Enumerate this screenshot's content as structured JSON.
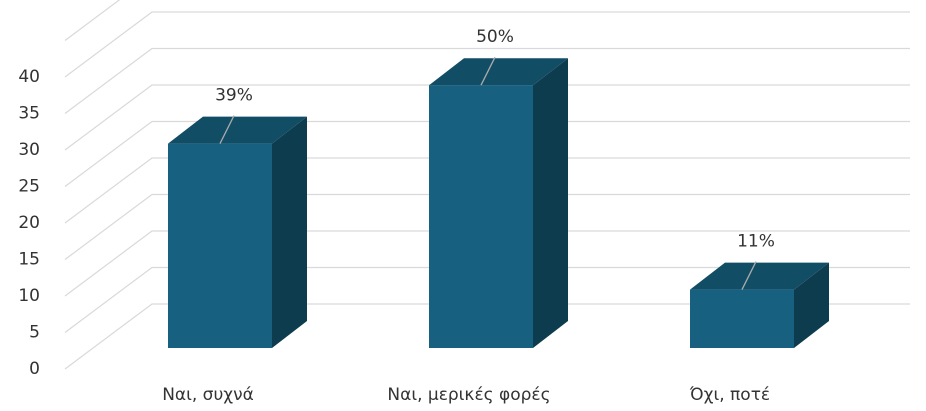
{
  "chart_data": {
    "type": "bar3d",
    "categories": [
      "Ναι, συχνά",
      "Ναι, μερικές φορές",
      "Όχι, ποτέ"
    ],
    "values": [
      28,
      36,
      8
    ],
    "value_labels": [
      "39%",
      "50%",
      "11%"
    ],
    "color": "#17607f",
    "ylim": [
      0,
      45
    ],
    "yticks": [
      0,
      5,
      10,
      15,
      20,
      25,
      30,
      35,
      40
    ],
    "grid": true
  }
}
